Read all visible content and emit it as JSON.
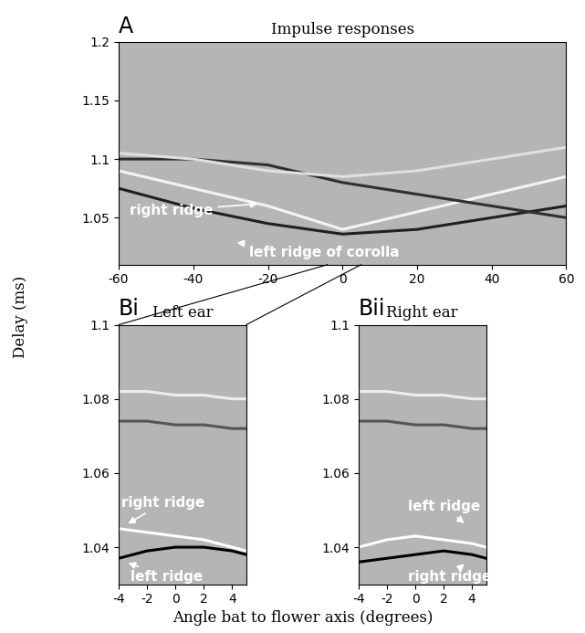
{
  "figure": {
    "ylabel": "Delay (ms)",
    "xlabel": "Angle bat to flower axis (degrees)"
  },
  "chart_data": [
    {
      "type": "line",
      "panel_label": "A",
      "title": "Impulse responses",
      "x": [
        -60,
        -40,
        -20,
        0,
        20,
        40,
        60
      ],
      "xlim": [
        -60,
        60
      ],
      "xticks": [
        -60,
        -40,
        -20,
        0,
        20,
        40,
        60
      ],
      "ylim": [
        1.01,
        1.2
      ],
      "yticks": [
        1.05,
        1.1,
        1.15,
        1.2
      ],
      "series": [
        {
          "color": "#202020",
          "values": [
            1.075,
            1.058,
            1.045,
            1.036,
            1.04,
            1.05,
            1.06
          ]
        },
        {
          "color": "#f4f4f4",
          "values": [
            1.09,
            1.075,
            1.06,
            1.04,
            1.055,
            1.07,
            1.085
          ]
        },
        {
          "color": "#303030",
          "values": [
            1.1,
            1.1,
            1.095,
            1.08,
            1.07,
            1.06,
            1.05
          ]
        },
        {
          "color": "#e0e0e0",
          "values": [
            1.105,
            1.1,
            1.09,
            1.085,
            1.09,
            1.1,
            1.11
          ]
        }
      ],
      "annotations": [
        {
          "text": "right ridge",
          "xy": [
            -22,
            1.062
          ],
          "xytext": [
            -57,
            1.056
          ]
        },
        {
          "text": "left ridge of corolla",
          "xy": [
            -29,
            1.029
          ],
          "xytext": [
            -25,
            1.02
          ]
        }
      ]
    },
    {
      "type": "line",
      "panel_label": "Bi",
      "title": "Left ear",
      "x": [
        -4,
        -2,
        0,
        2,
        4,
        5
      ],
      "xlim": [
        -4,
        5
      ],
      "xticks": [
        -4,
        -2,
        0,
        2,
        4
      ],
      "ylim": [
        1.03,
        1.1
      ],
      "yticks": [
        1.04,
        1.06,
        1.08,
        1.1
      ],
      "series": [
        {
          "color": "#ffffff",
          "values": [
            1.045,
            1.044,
            1.043,
            1.042,
            1.04,
            1.039
          ]
        },
        {
          "color": "#000000",
          "values": [
            1.037,
            1.039,
            1.04,
            1.04,
            1.039,
            1.038
          ]
        },
        {
          "color": "#eeeeee",
          "values": [
            1.082,
            1.082,
            1.081,
            1.081,
            1.08,
            1.08
          ]
        },
        {
          "color": "#555555",
          "values": [
            1.074,
            1.074,
            1.073,
            1.073,
            1.072,
            1.072
          ]
        }
      ],
      "annotations": [
        {
          "text": "right ridge",
          "xy": [
            -3.5,
            1.046
          ],
          "xytext": [
            -3.8,
            1.052
          ]
        },
        {
          "text": "left ridge",
          "xy": [
            -3.5,
            1.036
          ],
          "xytext": [
            -3.2,
            1.032
          ]
        }
      ]
    },
    {
      "type": "line",
      "panel_label": "Bii",
      "title": "Right ear",
      "x": [
        -4,
        -2,
        0,
        2,
        4,
        5
      ],
      "xlim": [
        -4,
        5
      ],
      "xticks": [
        -4,
        -2,
        0,
        2,
        4
      ],
      "ylim": [
        1.03,
        1.1
      ],
      "yticks": [
        1.04,
        1.06,
        1.08,
        1.1
      ],
      "series": [
        {
          "color": "#ffffff",
          "values": [
            1.04,
            1.042,
            1.043,
            1.042,
            1.041,
            1.04
          ]
        },
        {
          "color": "#000000",
          "values": [
            1.036,
            1.037,
            1.038,
            1.039,
            1.038,
            1.037
          ]
        },
        {
          "color": "#eeeeee",
          "values": [
            1.082,
            1.082,
            1.081,
            1.081,
            1.08,
            1.08
          ]
        },
        {
          "color": "#555555",
          "values": [
            1.074,
            1.074,
            1.073,
            1.073,
            1.072,
            1.072
          ]
        }
      ],
      "annotations": [
        {
          "text": "left ridge",
          "xy": [
            3.6,
            1.046
          ],
          "xytext": [
            -0.5,
            1.051
          ]
        },
        {
          "text": "right ridge",
          "xy": [
            3.6,
            1.036
          ],
          "xytext": [
            -0.5,
            1.032
          ]
        }
      ]
    }
  ]
}
